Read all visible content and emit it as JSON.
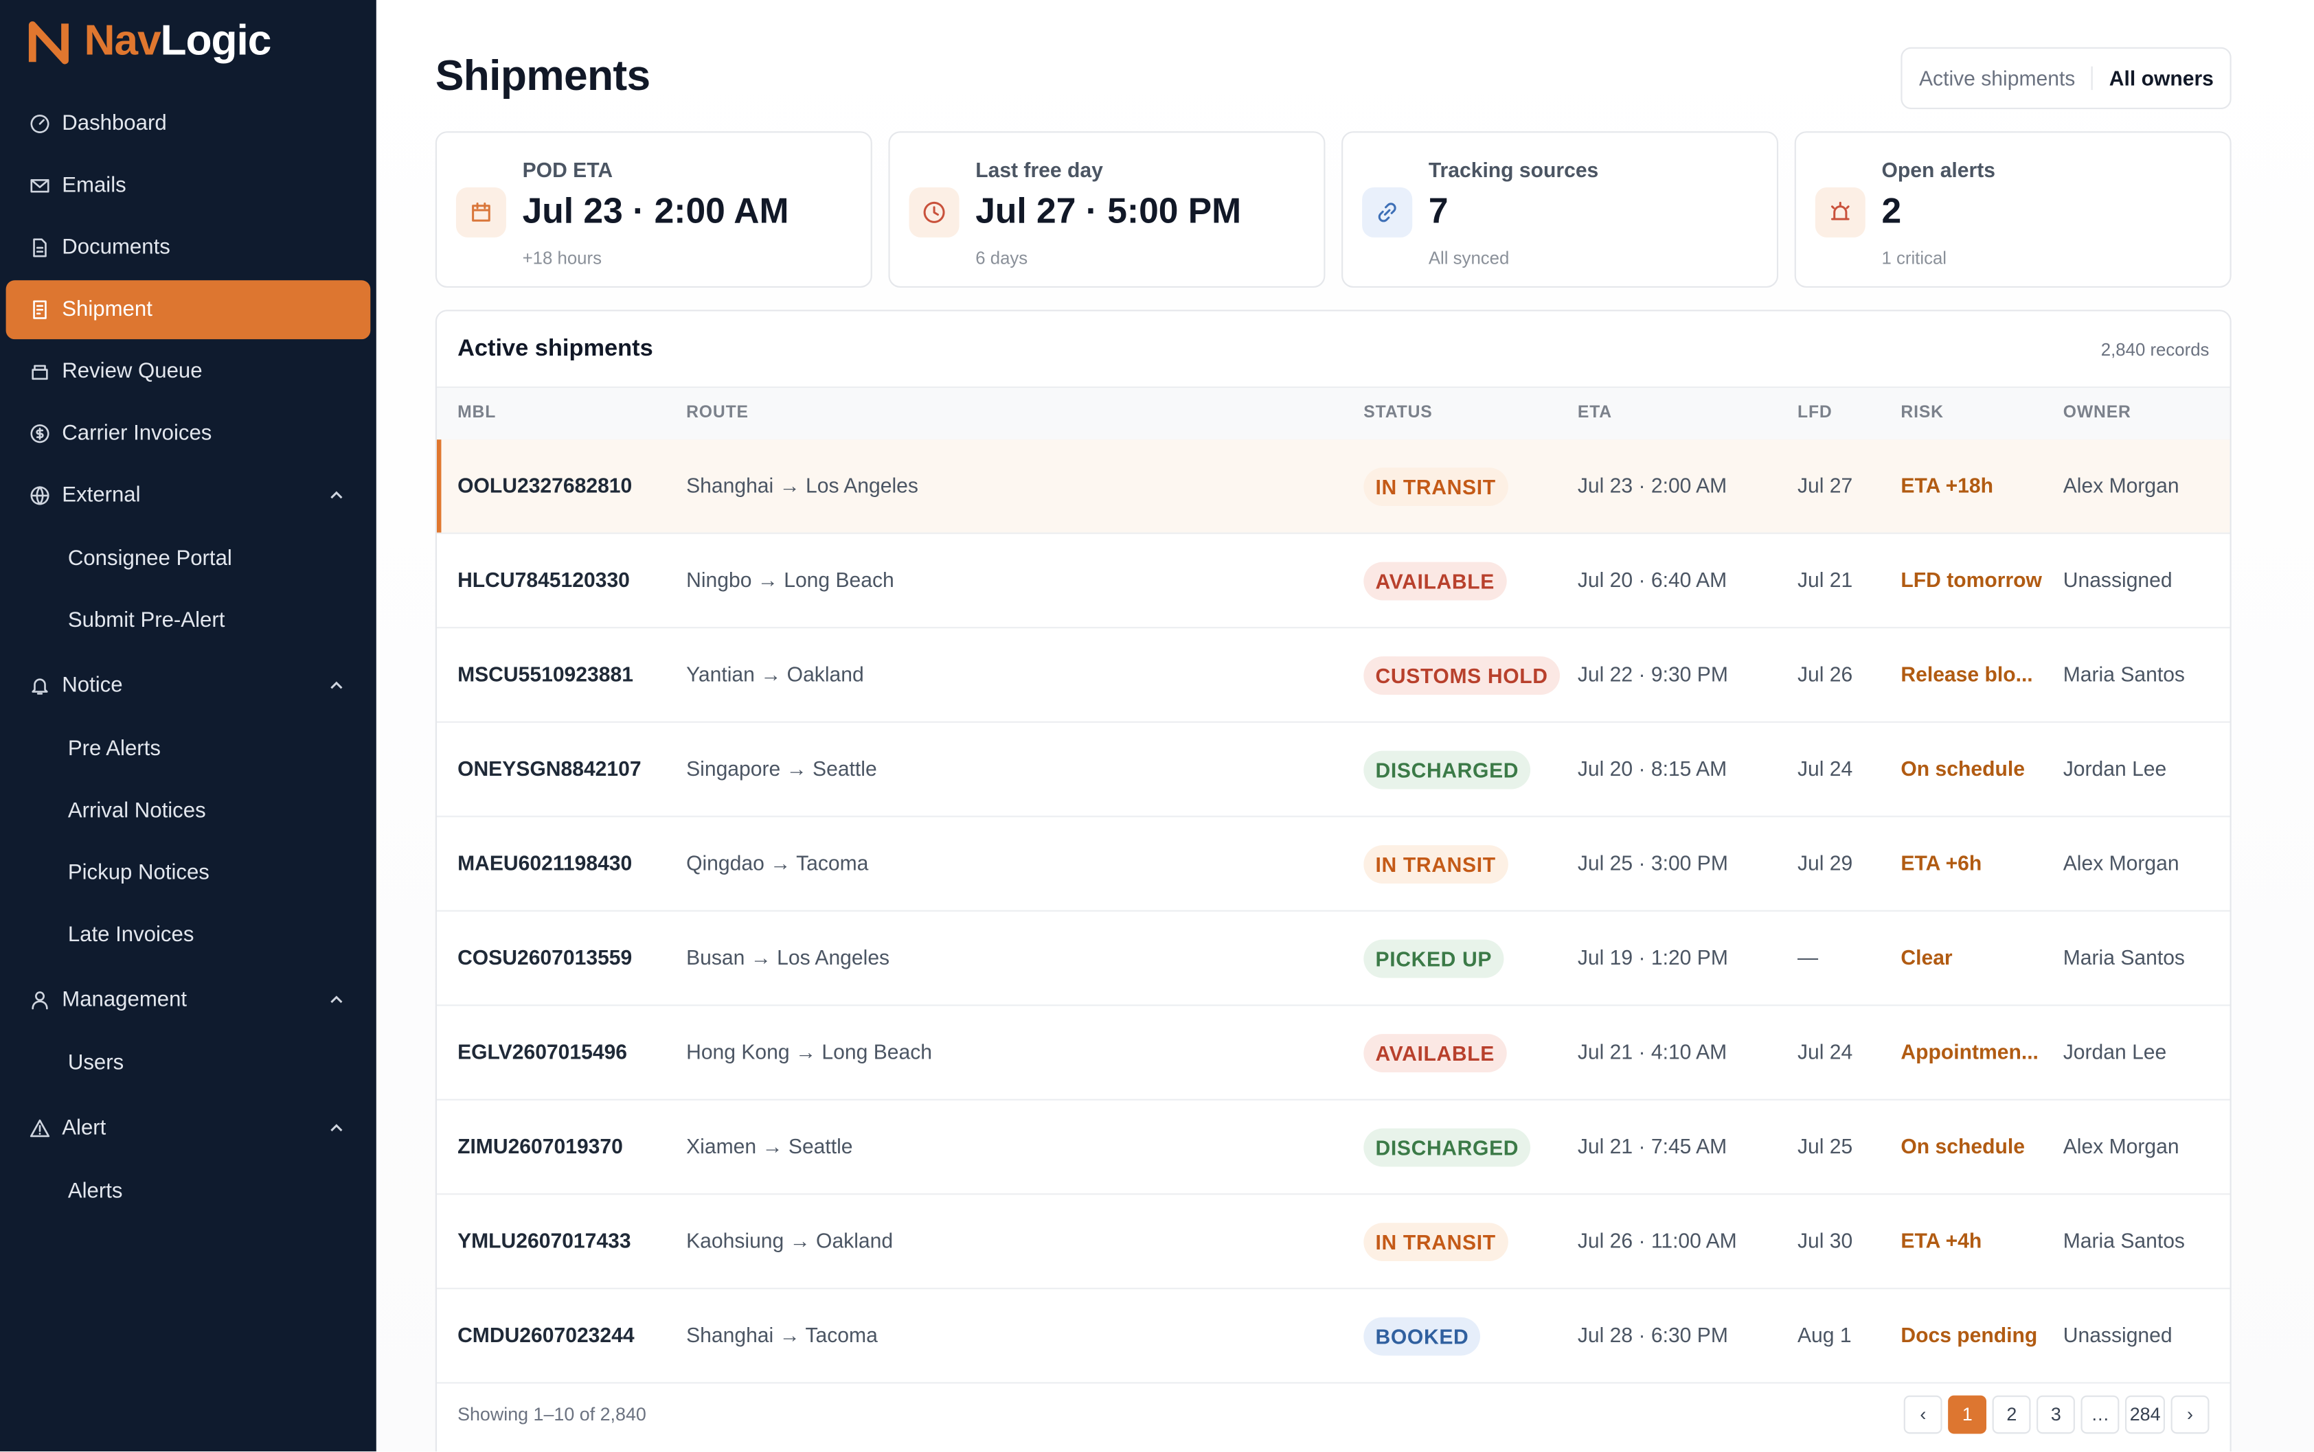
{
  "brand": {
    "first": "Nav",
    "second": "Logic"
  },
  "nav": [
    {
      "label": "Dashboard"
    },
    {
      "label": "Emails"
    },
    {
      "label": "Documents"
    },
    {
      "label": "Shipment",
      "active": true
    },
    {
      "label": "Review Queue"
    },
    {
      "label": "Carrier Invoices"
    },
    {
      "label": "External",
      "expanded": true,
      "children": [
        "Consignee Portal",
        "Submit Pre-Alert"
      ]
    },
    {
      "label": "Notice",
      "expanded": true,
      "children": [
        "Pre Alerts",
        "Arrival Notices",
        "Pickup Notices",
        "Late Invoices"
      ]
    },
    {
      "label": "Management",
      "expanded": true,
      "children": [
        "Users"
      ]
    },
    {
      "label": "Alert",
      "expanded": true,
      "children": [
        "Alerts"
      ]
    }
  ],
  "header": {
    "title": "Shipments",
    "filters": [
      "Active shipments",
      "All owners"
    ],
    "active_filter": 1
  },
  "stats": [
    {
      "label": "POD ETA",
      "value": "Jul 23 · 2:00 AM",
      "sub": "+18 hours"
    },
    {
      "label": "Last free day",
      "value": "Jul 27 · 5:00 PM",
      "sub": "6 days"
    },
    {
      "label": "Tracking sources",
      "value": "7",
      "sub": "All synced"
    },
    {
      "label": "Open alerts",
      "value": "2",
      "sub": "1 critical"
    }
  ],
  "table": {
    "title": "Active shipments",
    "count": "2,840 records",
    "columns": [
      "MBL",
      "ROUTE",
      "STATUS",
      "ETA",
      "LFD",
      "RISK",
      "OWNER"
    ],
    "selected_row": 0,
    "rows": [
      {
        "mbl": "OOLU2327682810",
        "route": "Shanghai → Los Angeles",
        "status": "IN TRANSIT",
        "tone": "orange",
        "eta": "Jul 23 · 2:00 AM",
        "lfd": "Jul 27",
        "risk": "ETA +18h",
        "owner": "Alex Morgan"
      },
      {
        "mbl": "HLCU7845120330",
        "route": "Ningbo → Long Beach",
        "status": "AVAILABLE",
        "tone": "red",
        "eta": "Jul 20 · 6:40 AM",
        "lfd": "Jul 21",
        "risk": "LFD tomorrow",
        "owner": "Unassigned"
      },
      {
        "mbl": "MSCU5510923881",
        "route": "Yantian → Oakland",
        "status": "CUSTOMS HOLD",
        "tone": "red",
        "eta": "Jul 22 · 9:30 PM",
        "lfd": "Jul 26",
        "risk": "Release blo...",
        "owner": "Maria Santos"
      },
      {
        "mbl": "ONEYSGN8842107",
        "route": "Singapore → Seattle",
        "status": "DISCHARGED",
        "tone": "green",
        "eta": "Jul 20 · 8:15 AM",
        "lfd": "Jul 24",
        "risk": "On schedule",
        "owner": "Jordan Lee"
      },
      {
        "mbl": "MAEU6021198430",
        "route": "Qingdao → Tacoma",
        "status": "IN TRANSIT",
        "tone": "orange",
        "eta": "Jul 25 · 3:00 PM",
        "lfd": "Jul 29",
        "risk": "ETA +6h",
        "owner": "Alex Morgan"
      },
      {
        "mbl": "COSU2607013559",
        "route": "Busan → Los Angeles",
        "status": "PICKED UP",
        "tone": "green",
        "eta": "Jul 19 · 1:20 PM",
        "lfd": "—",
        "risk": "Clear",
        "owner": "Maria Santos"
      },
      {
        "mbl": "EGLV2607015496",
        "route": "Hong Kong → Long Beach",
        "status": "AVAILABLE",
        "tone": "red",
        "eta": "Jul 21 · 4:10 AM",
        "lfd": "Jul 24",
        "risk": "Appointmen...",
        "owner": "Jordan Lee"
      },
      {
        "mbl": "ZIMU2607019370",
        "route": "Xiamen → Seattle",
        "status": "DISCHARGED",
        "tone": "green",
        "eta": "Jul 21 · 7:45 AM",
        "lfd": "Jul 25",
        "risk": "On schedule",
        "owner": "Alex Morgan"
      },
      {
        "mbl": "YMLU2607017433",
        "route": "Kaohsiung → Oakland",
        "status": "IN TRANSIT",
        "tone": "orange",
        "eta": "Jul 26 · 11:00 AM",
        "lfd": "Jul 30",
        "risk": "ETA +4h",
        "owner": "Maria Santos"
      },
      {
        "mbl": "CMDU2607023244",
        "route": "Shanghai → Tacoma",
        "status": "BOOKED",
        "tone": "blue",
        "eta": "Jul 28 · 6:30 PM",
        "lfd": "Aug 1",
        "risk": "Docs pending",
        "owner": "Unassigned"
      }
    ],
    "footer": "Showing 1–10 of 2,840",
    "pages": [
      "‹",
      "1",
      "2",
      "3",
      "…",
      "284",
      "›"
    ],
    "current_page": 1
  }
}
